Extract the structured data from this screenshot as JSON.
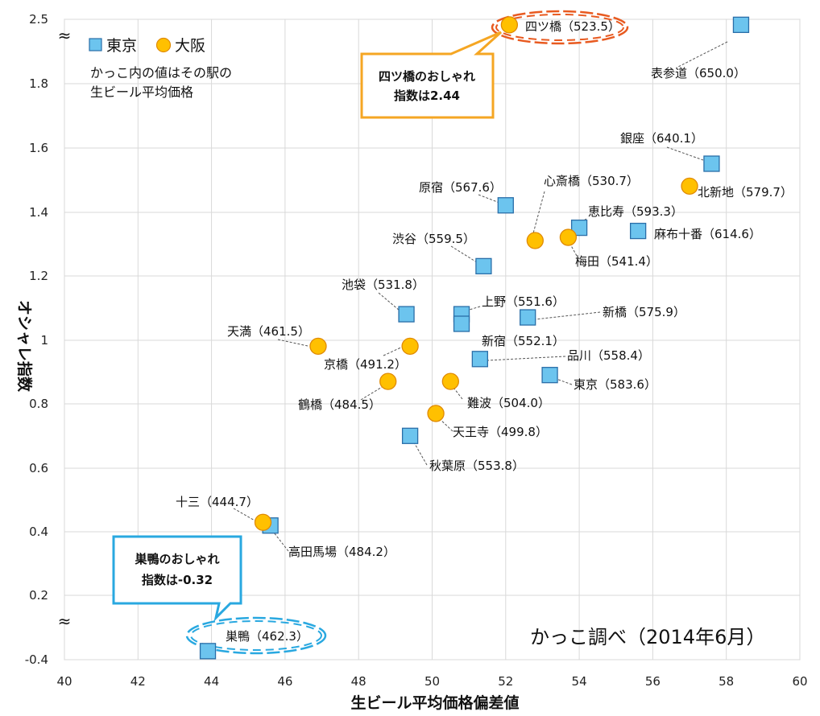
{
  "chart_data": {
    "type": "scatter",
    "xlabel": "生ビール平均価格偏差値",
    "ylabel": "オシャレ指数",
    "xlim": [
      40,
      60
    ],
    "x_ticks": [
      "40",
      "42",
      "44",
      "46",
      "48",
      "50",
      "52",
      "54",
      "56",
      "58",
      "60"
    ],
    "y_ticks": [
      "2.5",
      "1.8",
      "1.6",
      "1.4",
      "1.2",
      "1",
      "0.8",
      "0.6",
      "0.4",
      "0.2",
      "-0.4"
    ],
    "y_break_symbol": "≈",
    "grid": true,
    "legend": {
      "placement": "top-left",
      "entries": [
        {
          "name": "東京",
          "marker": "square",
          "color": "#6cc4ee"
        },
        {
          "name": "大阪",
          "marker": "circle",
          "color": "#ffc000"
        }
      ]
    },
    "note": [
      "かっこ内の値はその駅の",
      "生ビール平均価格"
    ],
    "credit": "かっこ調べ（2014年6月）",
    "series": [
      {
        "name": "東京",
        "points": [
          {
            "station": "表参道",
            "price": "650.0",
            "x": 58.4,
            "y": 2.44
          },
          {
            "station": "銀座",
            "price": "640.1",
            "x": 57.6,
            "y": 1.55
          },
          {
            "station": "原宿",
            "price": "567.6",
            "x": 52.0,
            "y": 1.42
          },
          {
            "station": "恵比寿",
            "price": "593.3",
            "x": 54.0,
            "y": 1.35
          },
          {
            "station": "麻布十番",
            "price": "614.6",
            "x": 55.6,
            "y": 1.34
          },
          {
            "station": "渋谷",
            "price": "559.5",
            "x": 51.4,
            "y": 1.23
          },
          {
            "station": "池袋",
            "price": "531.8",
            "x": 49.3,
            "y": 1.08
          },
          {
            "station": "上野",
            "price": "551.6",
            "x": 50.8,
            "y": 1.08
          },
          {
            "station": "新宿",
            "price": "552.1",
            "x": 50.8,
            "y": 1.05
          },
          {
            "station": "新橋",
            "price": "575.9",
            "x": 52.6,
            "y": 1.07
          },
          {
            "station": "品川",
            "price": "558.4",
            "x": 51.3,
            "y": 0.94
          },
          {
            "station": "東京",
            "price": "583.6",
            "x": 53.2,
            "y": 0.89
          },
          {
            "station": "秋葉原",
            "price": "553.8",
            "x": 49.4,
            "y": 0.7
          },
          {
            "station": "高田馬場",
            "price": "484.2",
            "x": 45.6,
            "y": 0.42
          },
          {
            "station": "巣鴨",
            "price": "462.3",
            "x": 43.9,
            "y": -0.32
          }
        ]
      },
      {
        "name": "大阪",
        "points": [
          {
            "station": "四ツ橋",
            "price": "523.5",
            "x": 52.1,
            "y": 2.44
          },
          {
            "station": "北新地",
            "price": "579.7",
            "x": 57.0,
            "y": 1.48
          },
          {
            "station": "心斎橋",
            "price": "530.7",
            "x": 52.8,
            "y": 1.31
          },
          {
            "station": "梅田",
            "price": "541.4",
            "x": 53.7,
            "y": 1.32
          },
          {
            "station": "天満",
            "price": "461.5",
            "x": 46.9,
            "y": 0.98
          },
          {
            "station": "京橋",
            "price": "491.2",
            "x": 49.4,
            "y": 0.98
          },
          {
            "station": "鶴橋",
            "price": "484.5",
            "x": 48.8,
            "y": 0.87
          },
          {
            "station": "難波",
            "price": "504.0",
            "x": 50.5,
            "y": 0.87
          },
          {
            "station": "天王寺",
            "price": "499.8",
            "x": 50.1,
            "y": 0.77
          },
          {
            "station": "十三",
            "price": "444.7",
            "x": 45.4,
            "y": 0.43
          }
        ]
      }
    ],
    "callouts": [
      {
        "station": "四ツ橋",
        "lines": [
          "四ツ橋のおしゃれ",
          "指数は2.44"
        ],
        "color": "#f5a623"
      },
      {
        "station": "巣鴨",
        "lines": [
          "巣鴨のおしゃれ",
          "指数は-0.32"
        ],
        "color": "#29a8e0"
      }
    ]
  }
}
